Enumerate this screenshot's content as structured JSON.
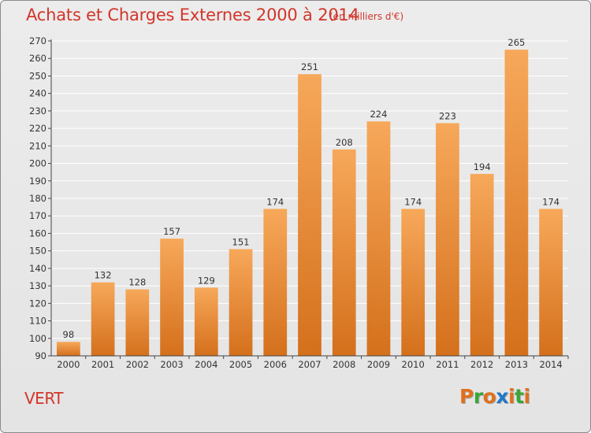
{
  "header": {
    "title": "Achats et Charges Externes 2000 à 2014",
    "unit": "(en milliers d'€)"
  },
  "footer": {
    "place": "VERT",
    "logo": [
      "P",
      "r",
      "o",
      "x",
      "i",
      "t",
      "i"
    ],
    "logo_colors": [
      "#e0701c",
      "#3aa63a",
      "#e0701c",
      "#1f78c8",
      "#e0701c",
      "#3aa63a",
      "#e0701c"
    ]
  },
  "colors": {
    "bar_top": "#f7a85a",
    "bar_bottom": "#d4701c",
    "axis": "#444444",
    "grid": "#ffffff",
    "text": "#333333"
  },
  "chart_data": {
    "type": "bar",
    "title": "Achats et Charges Externes 2000 à 2014",
    "subtitle": "(en milliers d'€)",
    "xlabel": "",
    "ylabel": "",
    "categories": [
      "2000",
      "2001",
      "2002",
      "2003",
      "2004",
      "2005",
      "2006",
      "2007",
      "2008",
      "2009",
      "2010",
      "2011",
      "2012",
      "2013",
      "2014"
    ],
    "values": [
      98,
      132,
      128,
      157,
      129,
      151,
      174,
      251,
      208,
      224,
      174,
      223,
      194,
      265,
      174
    ],
    "ylim": [
      90,
      270
    ],
    "yticks": [
      90,
      100,
      110,
      120,
      130,
      140,
      150,
      160,
      170,
      180,
      190,
      200,
      210,
      220,
      230,
      240,
      250,
      260,
      270
    ],
    "grid": true,
    "legend": "none"
  }
}
